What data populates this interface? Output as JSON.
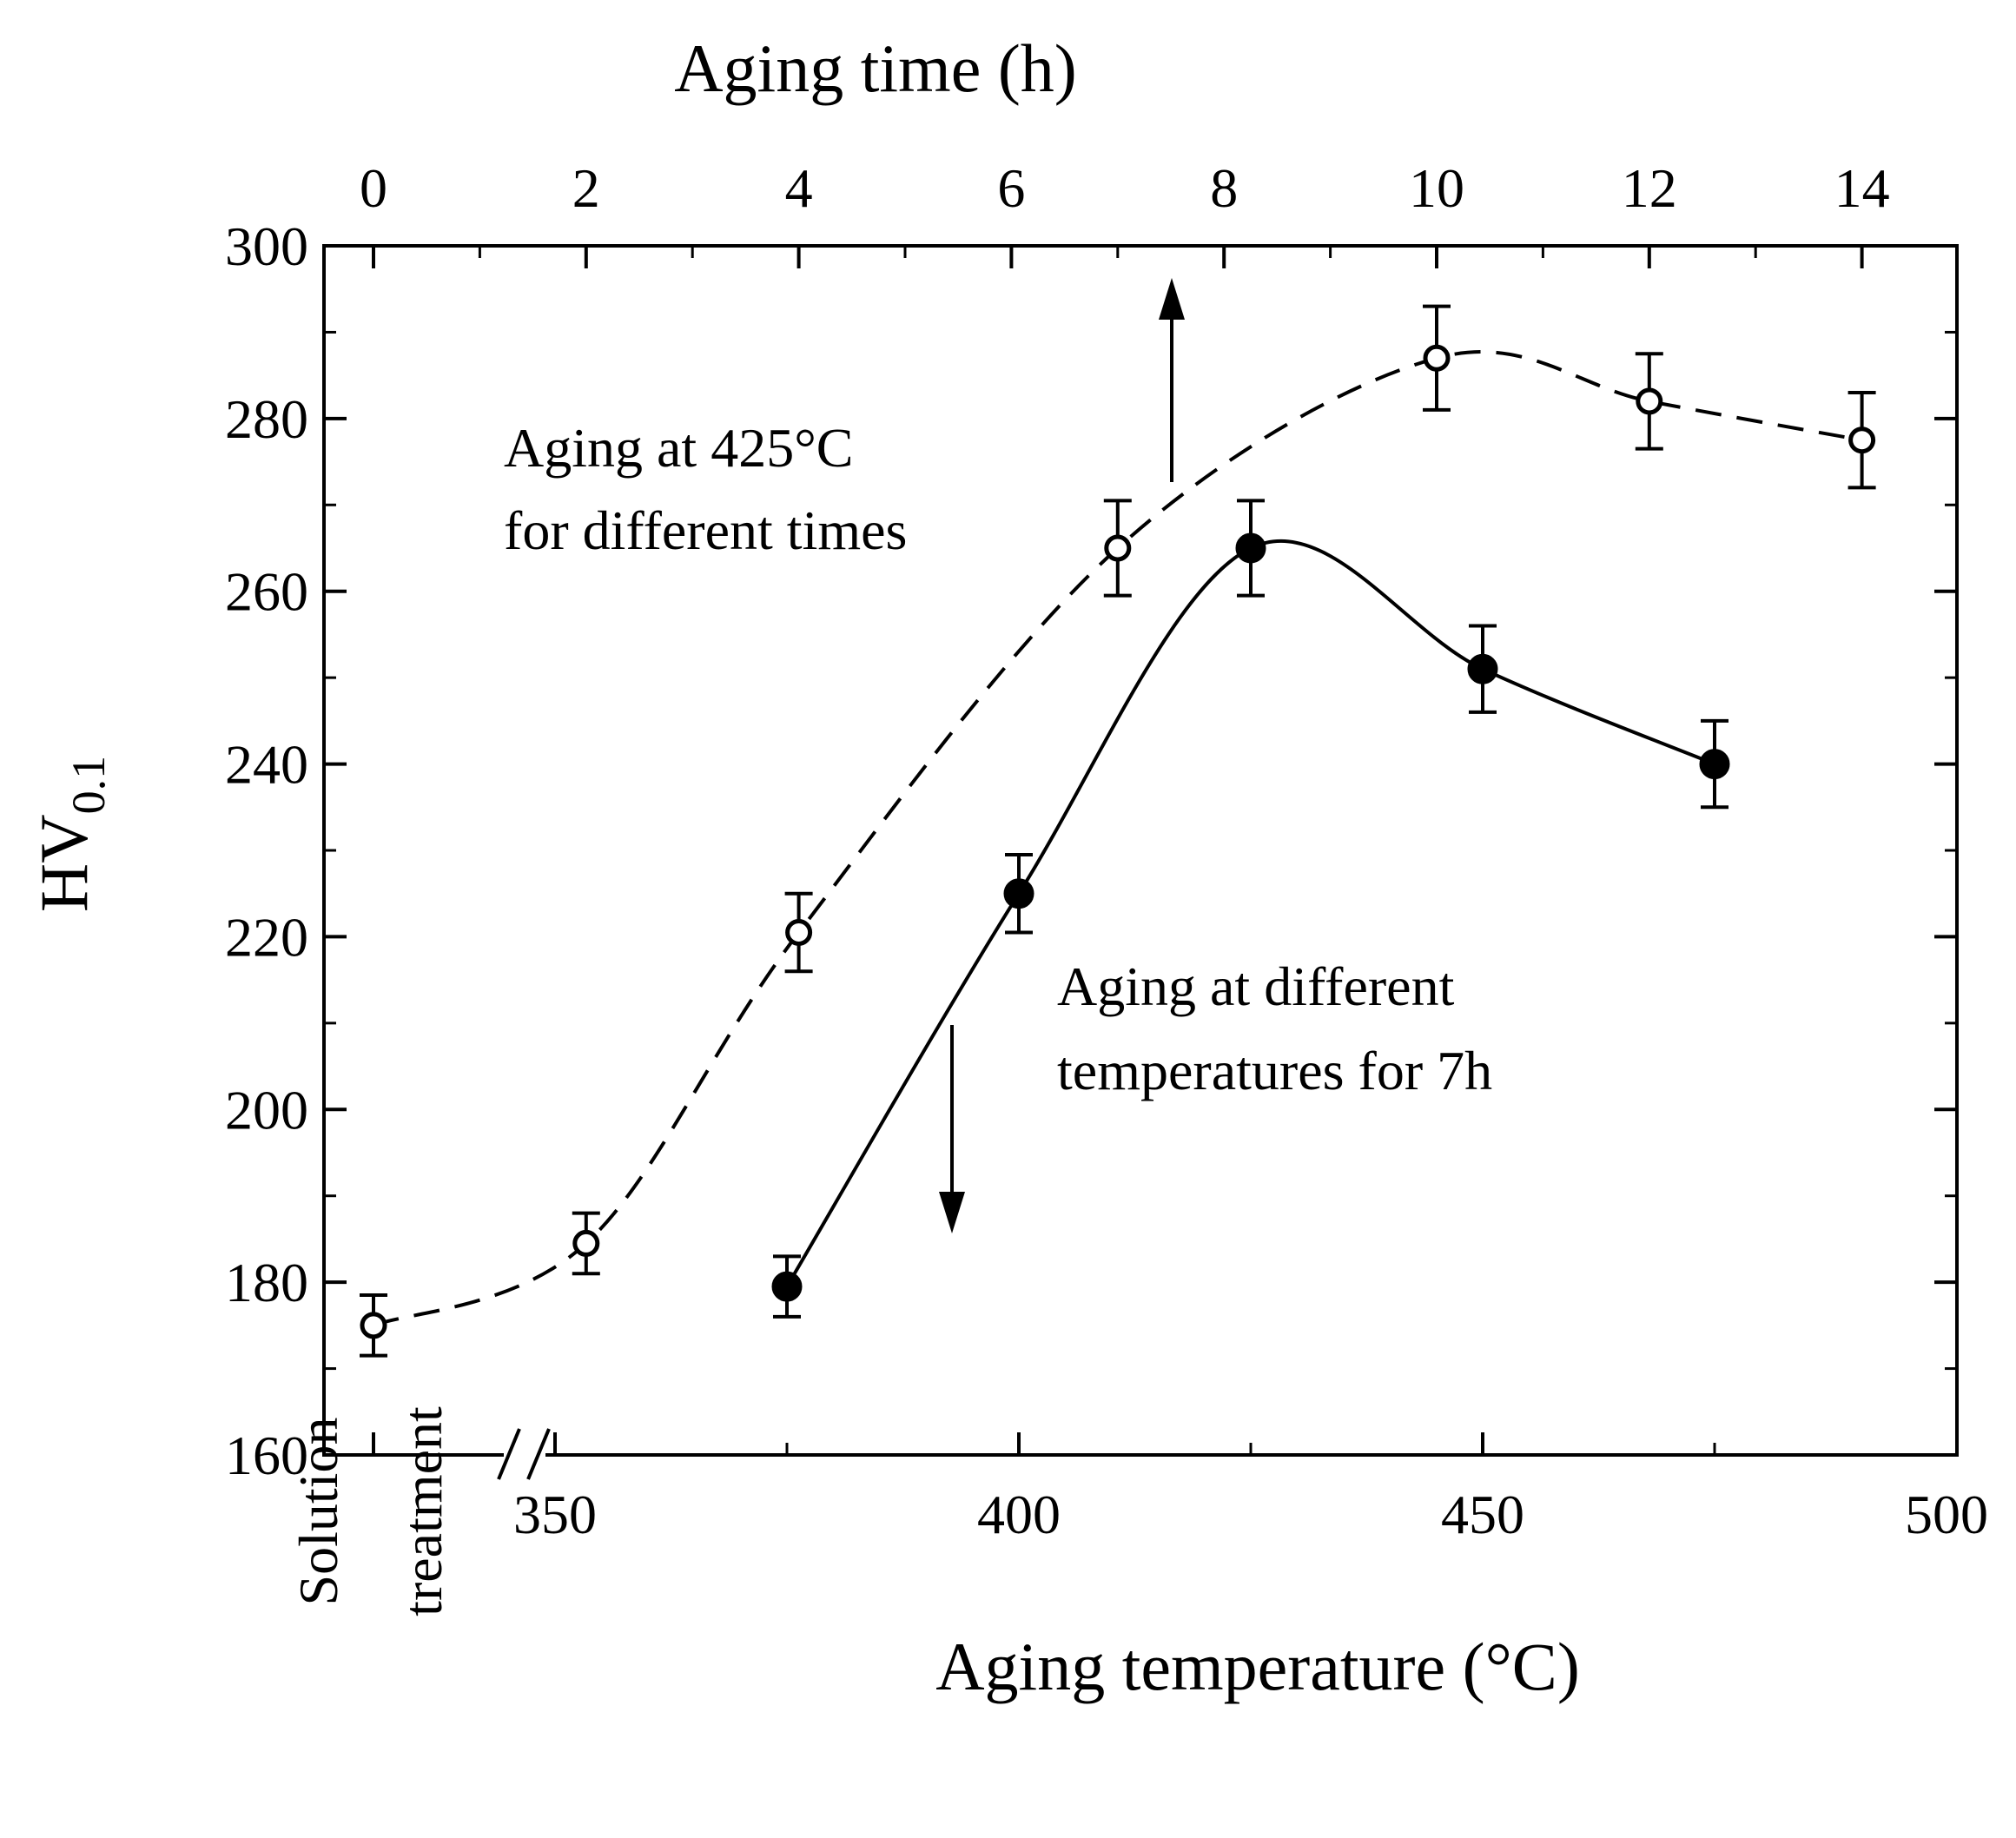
{
  "chart_data": {
    "type": "scatter",
    "title": "",
    "ylabel": {
      "main": "HV",
      "subscript": "0.1"
    },
    "ylim": [
      160,
      300
    ],
    "yticks": [
      "160",
      "180",
      "200",
      "220",
      "240",
      "260",
      "280",
      "300"
    ],
    "x_top": {
      "label": "Aging time (h)",
      "ticks": [
        "0",
        "2",
        "4",
        "6",
        "8",
        "10",
        "12",
        "14"
      ]
    },
    "x_bottom": {
      "label": "Aging temperature (°C)",
      "xlim": [
        330,
        500
      ],
      "ticks": [
        "350",
        "400",
        "450",
        "500"
      ],
      "break_label_line1": "Solution",
      "break_label_line2": "treatment"
    },
    "series": [
      {
        "name": "Aging at 425°C for different times",
        "axis": "top",
        "marker": "open-circle",
        "line": "dashed",
        "points": [
          {
            "x": 0,
            "y": 175,
            "err": 3.5
          },
          {
            "x": 2,
            "y": 184.5,
            "err": 3.5
          },
          {
            "x": 4,
            "y": 220.5,
            "err": 4.5
          },
          {
            "x": 7,
            "y": 265,
            "err": 5.5
          },
          {
            "x": 10,
            "y": 287,
            "err": 6
          },
          {
            "x": 12,
            "y": 282,
            "err": 5.5
          },
          {
            "x": 14,
            "y": 277.5,
            "err": 5.5
          }
        ]
      },
      {
        "name": "Aging at different temperatures for 7h",
        "axis": "bottom",
        "marker": "filled-circle",
        "line": "solid",
        "points": [
          {
            "x": 375,
            "y": 179.5,
            "err": 3.5
          },
          {
            "x": 400,
            "y": 225,
            "err": 4.5
          },
          {
            "x": 425,
            "y": 265,
            "err": 5.5
          },
          {
            "x": 450,
            "y": 251,
            "err": 5
          },
          {
            "x": 475,
            "y": 240,
            "err": 5
          }
        ]
      }
    ],
    "annotations": {
      "top_series_line1": "Aging at 425°C",
      "top_series_line2": "for different times",
      "bottom_series_line1": "Aging at different",
      "bottom_series_line2": "temperatures for 7h"
    }
  }
}
